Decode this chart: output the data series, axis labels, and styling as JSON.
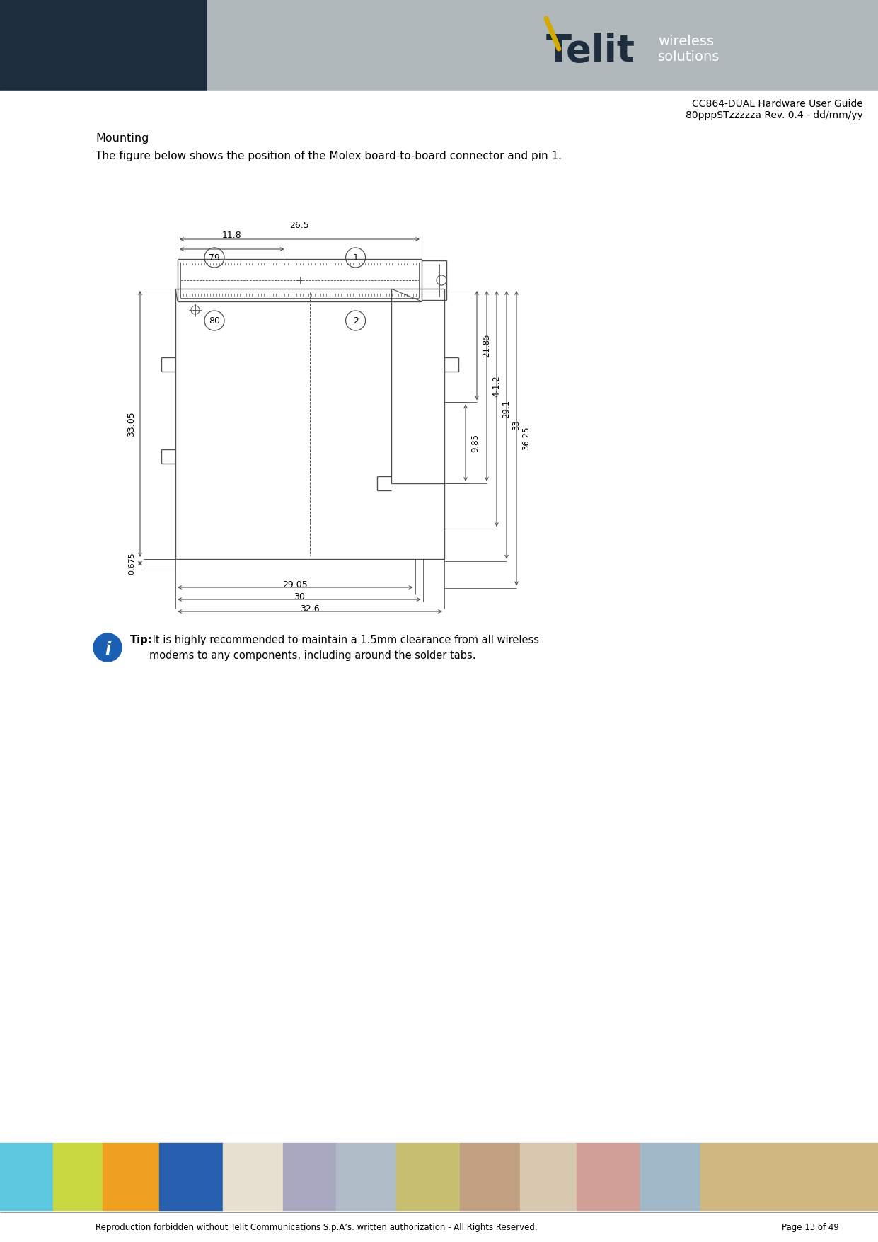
{
  "page_width": 12.41,
  "page_height": 17.55,
  "header_dark_bg": "#1e2d3d",
  "header_gray_bg": "#b0b8bc",
  "header_title_line1": "CC864-DUAL Hardware User Guide",
  "header_title_line2": "80pppSTzzzzza Rev. 0.4 - dd/mm/yy",
  "section_title": "Mounting",
  "section_body": "The figure below shows the position of the Molex board-to-board connector and pin 1.",
  "tip_bold": "Tip:",
  "tip_text": " It is highly recommended to maintain a 1.5mm clearance from all wireless\nmodems to any components, including around the solder tabs.",
  "footer_text": "Reproduction forbidden without Telit Communications S.p.A’s. written authorization - All Rights Reserved.",
  "footer_page": "Page 13 of 49",
  "dim_26_5": "26.5",
  "dim_11_8": "11.8",
  "dim_33_05": "33.05",
  "dim_0_675": "0.675",
  "dim_29_05": "29.05",
  "dim_30": "30",
  "dim_32_6": "32.6",
  "dim_4_12": "4-1.2",
  "dim_21_85": "21.85",
  "dim_9_85": "9.85",
  "dim_29_1": "29.1",
  "dim_33": "33",
  "dim_36_25": "36.25",
  "pin79": "79",
  "pin1": "1",
  "pin80": "80",
  "pin2": "2",
  "draw_color": "#505050"
}
